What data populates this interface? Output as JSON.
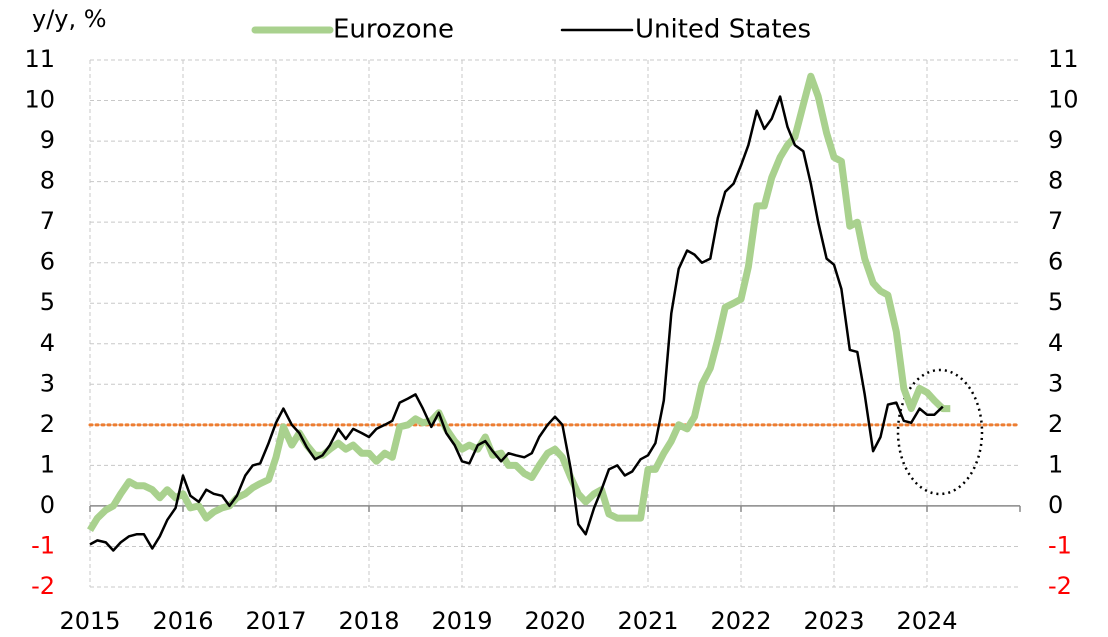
{
  "chart_data": {
    "type": "line",
    "ylabel": "y/y, %",
    "x": [
      2015,
      2015.08,
      2015.17,
      2015.25,
      2015.33,
      2015.42,
      2015.5,
      2015.58,
      2015.67,
      2015.75,
      2015.83,
      2015.92,
      2016,
      2016.08,
      2016.17,
      2016.25,
      2016.33,
      2016.42,
      2016.5,
      2016.58,
      2016.67,
      2016.75,
      2016.83,
      2016.92,
      2017,
      2017.08,
      2017.17,
      2017.25,
      2017.33,
      2017.42,
      2017.5,
      2017.58,
      2017.67,
      2017.75,
      2017.83,
      2017.92,
      2018,
      2018.08,
      2018.17,
      2018.25,
      2018.33,
      2018.42,
      2018.5,
      2018.58,
      2018.67,
      2018.75,
      2018.83,
      2018.92,
      2019,
      2019.08,
      2019.17,
      2019.25,
      2019.33,
      2019.42,
      2019.5,
      2019.58,
      2019.67,
      2019.75,
      2019.83,
      2019.92,
      2020,
      2020.08,
      2020.17,
      2020.25,
      2020.33,
      2020.42,
      2020.5,
      2020.58,
      2020.67,
      2020.75,
      2020.83,
      2020.92,
      2021,
      2021.08,
      2021.17,
      2021.25,
      2021.33,
      2021.42,
      2021.5,
      2021.58,
      2021.67,
      2021.75,
      2021.83,
      2021.92,
      2022,
      2022.08,
      2022.17,
      2022.25,
      2022.33,
      2022.42,
      2022.5,
      2022.58,
      2022.67,
      2022.75,
      2022.83,
      2022.92,
      2023,
      2023.08,
      2023.17,
      2023.25,
      2023.33,
      2023.42,
      2023.5,
      2023.58,
      2023.67,
      2023.75,
      2023.83,
      2023.92,
      2024,
      2024.08,
      2024.17,
      2024.25
    ],
    "series": [
      {
        "name": "Eurozone",
        "color": "#a9d18e",
        "width": 7,
        "values": [
          -0.6,
          -0.3,
          -0.1,
          0.0,
          0.3,
          0.6,
          0.5,
          0.5,
          0.4,
          0.2,
          0.4,
          0.2,
          0.3,
          -0.05,
          0.0,
          -0.3,
          -0.15,
          -0.05,
          0.0,
          0.2,
          0.3,
          0.45,
          0.55,
          0.65,
          1.2,
          1.95,
          1.5,
          1.8,
          1.5,
          1.25,
          1.25,
          1.4,
          1.55,
          1.4,
          1.5,
          1.3,
          1.3,
          1.1,
          1.3,
          1.2,
          1.95,
          2.0,
          2.15,
          2.05,
          2.1,
          2.3,
          1.9,
          1.6,
          1.4,
          1.5,
          1.4,
          1.7,
          1.25,
          1.3,
          1.0,
          1.0,
          0.8,
          0.7,
          1.0,
          1.3,
          1.4,
          1.2,
          0.7,
          0.3,
          0.1,
          0.3,
          0.4,
          -0.2,
          -0.3,
          -0.3,
          -0.3,
          -0.3,
          0.9,
          0.9,
          1.3,
          1.6,
          2.0,
          1.9,
          2.2,
          3.0,
          3.4,
          4.1,
          4.9,
          5.0,
          5.1,
          5.9,
          7.4,
          7.4,
          8.1,
          8.6,
          8.9,
          9.1,
          9.9,
          10.6,
          10.1,
          9.2,
          8.6,
          8.5,
          6.9,
          7.0,
          6.1,
          5.5,
          5.3,
          5.2,
          4.3,
          2.9,
          2.4,
          2.9,
          2.8,
          2.6,
          2.4,
          2.4
        ]
      },
      {
        "name": "United States",
        "color": "#000000",
        "width": 2.5,
        "values": [
          -0.95,
          -0.85,
          -0.9,
          -1.1,
          -0.9,
          -0.75,
          -0.7,
          -0.7,
          -1.05,
          -0.75,
          -0.35,
          -0.05,
          0.75,
          0.25,
          0.1,
          0.4,
          0.3,
          0.25,
          0.0,
          0.25,
          0.75,
          1.0,
          1.05,
          1.55,
          2.05,
          2.4,
          2.0,
          1.8,
          1.45,
          1.15,
          1.25,
          1.5,
          1.9,
          1.65,
          1.9,
          1.8,
          1.7,
          1.9,
          2.0,
          2.1,
          2.55,
          2.65,
          2.75,
          2.4,
          1.95,
          2.3,
          1.8,
          1.5,
          1.1,
          1.05,
          1.5,
          1.6,
          1.35,
          1.1,
          1.3,
          1.25,
          1.2,
          1.3,
          1.7,
          2.0,
          2.2,
          2.0,
          0.9,
          -0.45,
          -0.7,
          -0.05,
          0.4,
          0.9,
          1.0,
          0.75,
          0.85,
          1.15,
          1.25,
          1.55,
          2.6,
          4.75,
          5.85,
          6.3,
          6.2,
          6.0,
          6.1,
          7.1,
          7.75,
          7.95,
          8.4,
          8.9,
          9.75,
          9.3,
          9.55,
          10.1,
          9.35,
          8.9,
          8.75,
          7.95,
          7.0,
          6.1,
          5.95,
          5.35,
          3.85,
          3.8,
          2.75,
          1.35,
          1.7,
          2.5,
          2.55,
          2.1,
          2.05,
          2.4,
          2.25,
          2.25,
          2.45,
          null
        ]
      }
    ],
    "xlim": [
      2015,
      2025
    ],
    "xticks": [
      2015,
      2016,
      2017,
      2018,
      2019,
      2020,
      2021,
      2022,
      2023,
      2024
    ],
    "ylim": [
      -2,
      11
    ],
    "yticks": [
      -2,
      -1,
      0,
      1,
      2,
      3,
      4,
      5,
      6,
      7,
      8,
      9,
      10,
      11
    ],
    "y2lim": [
      -2,
      11
    ],
    "y2ticks": [
      -2,
      -1,
      0,
      1,
      2,
      3,
      4,
      5,
      6,
      7,
      8,
      9,
      10,
      11
    ],
    "negative_tick_color": "#ff0000",
    "reference_line": {
      "value": 2,
      "color": "#ed7d31"
    },
    "grid": true,
    "legend": "top"
  }
}
